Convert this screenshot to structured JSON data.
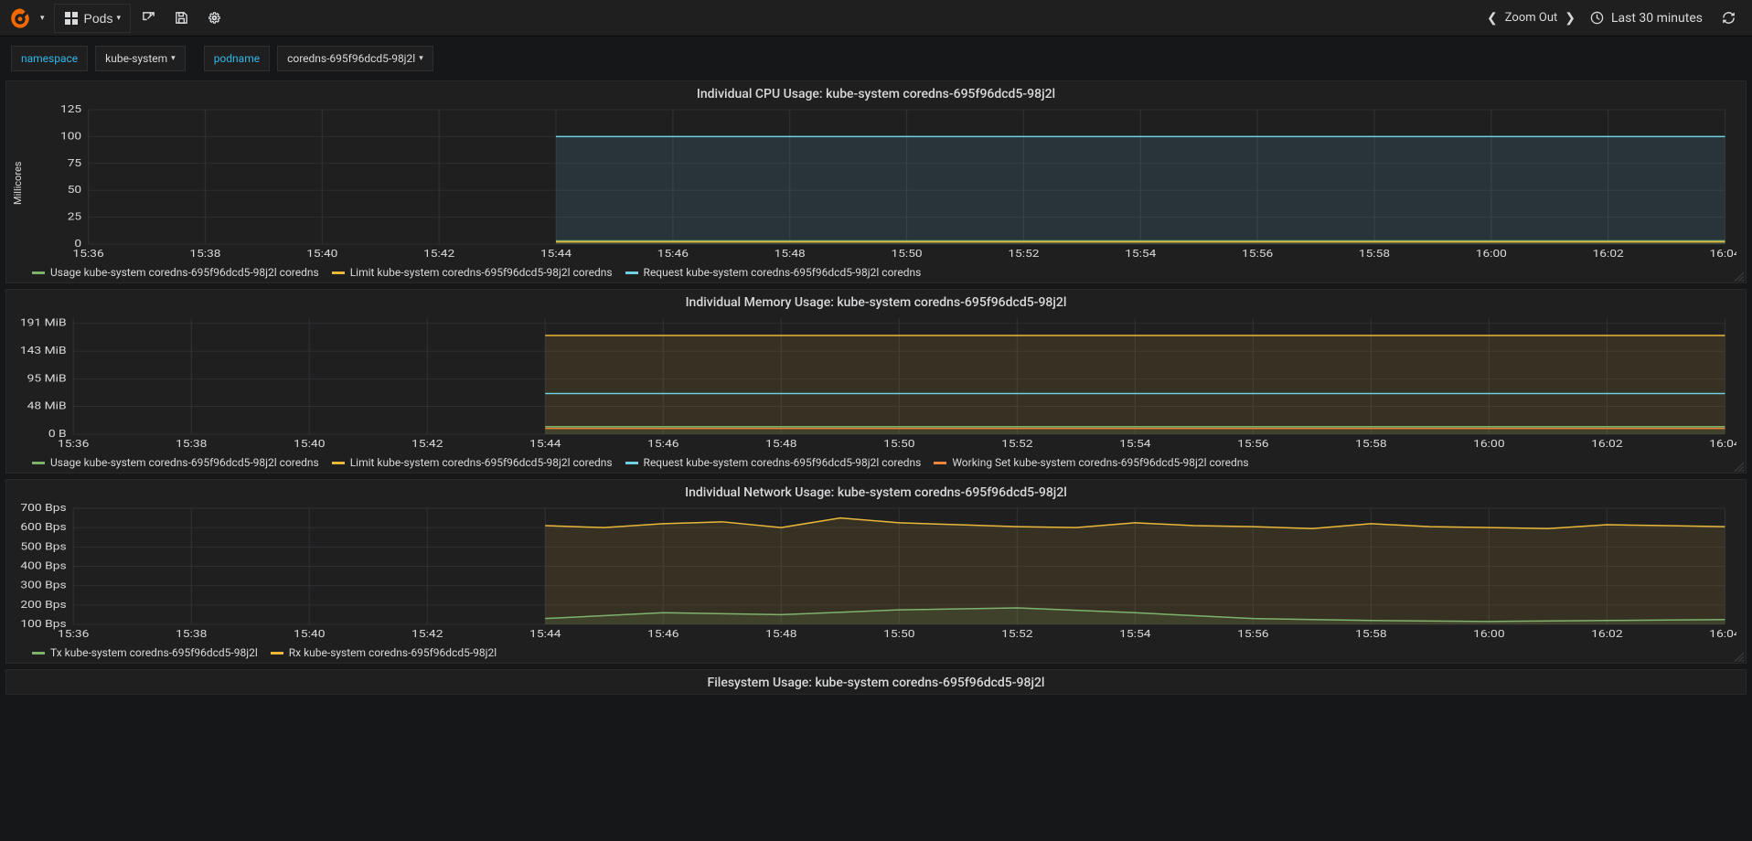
{
  "colors": {
    "bg": "#161719",
    "panel_bg": "#1f1f20",
    "text": "#d8d9da",
    "link": "#33b5e5",
    "grid": "#2f2f32",
    "series_green": "#7eb26d",
    "series_yellow": "#eab839",
    "series_cyan": "#6ed0e0",
    "series_orange": "#ef843c",
    "fill_opacity": 0.12
  },
  "navbar": {
    "dashboard_title": "Pods",
    "zoom_out": "Zoom Out",
    "time_range": "Last 30 minutes"
  },
  "vars": [
    {
      "label": "namespace",
      "value": "kube-system"
    },
    {
      "label": "podname",
      "value": "coredns-695f96dcd5-98j2l"
    }
  ],
  "time_axis": {
    "ticks": [
      "15:36",
      "15:38",
      "15:40",
      "15:42",
      "15:44",
      "15:46",
      "15:48",
      "15:50",
      "15:52",
      "15:54",
      "15:56",
      "15:58",
      "16:00",
      "16:02",
      "16:04"
    ],
    "data_start_tick": "15:44"
  },
  "panels": [
    {
      "title": "Individual CPU Usage: kube-system coredns-695f96dcd5-98j2l",
      "ylabel": "Millicores",
      "height": 170,
      "ymax": 125,
      "yticks": [
        0,
        25,
        50,
        75,
        100,
        125
      ],
      "ytick_labels": [
        "0",
        "25",
        "50",
        "75",
        "100",
        "125"
      ],
      "series": [
        {
          "name": "Usage kube-system coredns-695f96dcd5-98j2l coredns",
          "color": "#7eb26d",
          "fill": true,
          "flat_value": 3
        },
        {
          "name": "Limit kube-system coredns-695f96dcd5-98j2l coredns",
          "color": "#eab839",
          "fill": false,
          "flat_value": 2
        },
        {
          "name": "Request kube-system coredns-695f96dcd5-98j2l coredns",
          "color": "#6ed0e0",
          "fill": true,
          "flat_value": 100
        }
      ]
    },
    {
      "title": "Individual Memory Usage: kube-system coredns-695f96dcd5-98j2l",
      "ylabel": "",
      "height": 150,
      "ymax": 200,
      "yticks": [
        0,
        48,
        95,
        143,
        191
      ],
      "ytick_labels": [
        "0 B",
        "48 MiB",
        "95 MiB",
        "143 MiB",
        "191 MiB"
      ],
      "series": [
        {
          "name": "Usage kube-system coredns-695f96dcd5-98j2l coredns",
          "color": "#7eb26d",
          "fill": true,
          "flat_value": 13
        },
        {
          "name": "Limit kube-system coredns-695f96dcd5-98j2l coredns",
          "color": "#eab839",
          "fill": true,
          "flat_value": 170
        },
        {
          "name": "Request kube-system coredns-695f96dcd5-98j2l coredns",
          "color": "#6ed0e0",
          "fill": false,
          "flat_value": 70
        },
        {
          "name": "Working Set kube-system coredns-695f96dcd5-98j2l coredns",
          "color": "#ef843c",
          "fill": false,
          "flat_value": 10
        }
      ]
    },
    {
      "title": "Individual Network Usage: kube-system coredns-695f96dcd5-98j2l",
      "ylabel": "",
      "height": 150,
      "ymax": 700,
      "yticks": [
        100,
        200,
        300,
        400,
        500,
        600,
        700
      ],
      "ytick_labels": [
        "100 Bps",
        "200 Bps",
        "300 Bps",
        "400 Bps",
        "500 Bps",
        "600 Bps",
        "700 Bps"
      ],
      "series": [
        {
          "name": "Tx kube-system coredns-695f96dcd5-98j2l",
          "color": "#7eb26d",
          "fill": true,
          "values": [
            130,
            160,
            150,
            175,
            185,
            160,
            130,
            120,
            115,
            120,
            125
          ]
        },
        {
          "name": "Rx kube-system coredns-695f96dcd5-98j2l",
          "color": "#eab839",
          "fill": true,
          "values": [
            610,
            600,
            620,
            630,
            600,
            650,
            625,
            615,
            605,
            600,
            625,
            610,
            605,
            595,
            620,
            605,
            600,
            595,
            615,
            610,
            605
          ]
        }
      ]
    },
    {
      "title": "Filesystem Usage: kube-system coredns-695f96dcd5-98j2l",
      "ylabel": "",
      "height": 20,
      "ymax": 0,
      "yticks": [],
      "ytick_labels": [],
      "series": []
    }
  ]
}
